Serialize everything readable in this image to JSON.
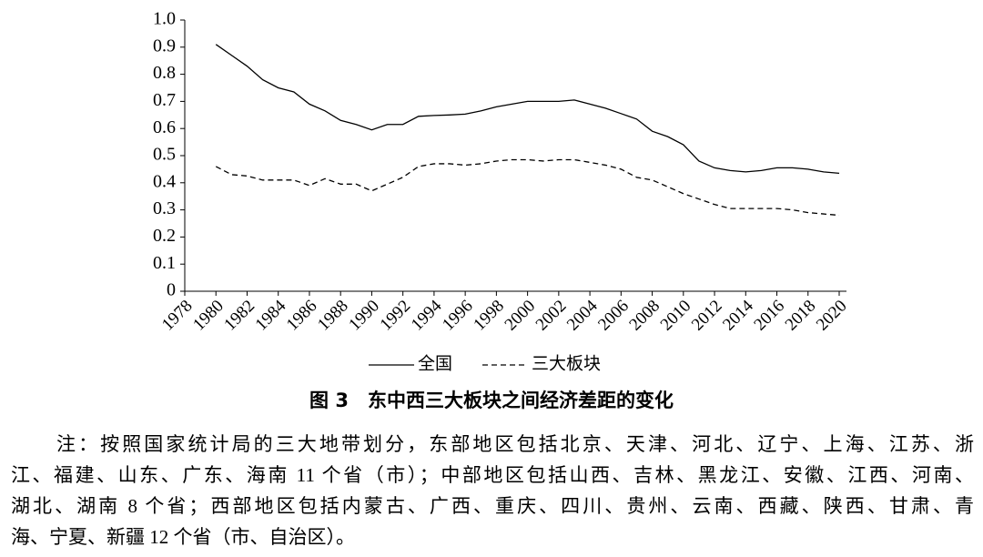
{
  "chart_data": {
    "type": "line",
    "x": [
      1980,
      1981,
      1982,
      1983,
      1984,
      1985,
      1986,
      1987,
      1988,
      1989,
      1990,
      1991,
      1992,
      1993,
      1994,
      1995,
      1996,
      1997,
      1998,
      1999,
      2000,
      2001,
      2002,
      2003,
      2004,
      2005,
      2006,
      2007,
      2008,
      2009,
      2010,
      2011,
      2012,
      2013,
      2014,
      2015,
      2016,
      2017,
      2018,
      2019,
      2020
    ],
    "series": [
      {
        "name": "全国",
        "color": "#000000",
        "dash": "solid",
        "values": [
          0.91,
          0.87,
          0.83,
          0.78,
          0.75,
          0.735,
          0.69,
          0.665,
          0.63,
          0.615,
          0.595,
          0.615,
          0.615,
          0.645,
          0.648,
          0.65,
          0.653,
          0.665,
          0.68,
          0.69,
          0.7,
          0.7,
          0.7,
          0.705,
          0.69,
          0.675,
          0.655,
          0.635,
          0.59,
          0.57,
          0.54,
          0.48,
          0.455,
          0.445,
          0.44,
          0.445,
          0.455,
          0.455,
          0.45,
          0.44,
          0.435
        ]
      },
      {
        "name": "三大板块",
        "color": "#000000",
        "dash": "dashed",
        "values": [
          0.46,
          0.43,
          0.425,
          0.41,
          0.41,
          0.41,
          0.39,
          0.415,
          0.395,
          0.395,
          0.37,
          0.395,
          0.42,
          0.46,
          0.47,
          0.47,
          0.465,
          0.47,
          0.48,
          0.485,
          0.485,
          0.48,
          0.485,
          0.485,
          0.475,
          0.465,
          0.45,
          0.42,
          0.41,
          0.385,
          0.36,
          0.34,
          0.32,
          0.305,
          0.305,
          0.305,
          0.305,
          0.3,
          0.29,
          0.285,
          0.28
        ]
      }
    ],
    "xlim": [
      1978,
      2020
    ],
    "xticks": [
      1978,
      1980,
      1982,
      1984,
      1986,
      1988,
      1990,
      1992,
      1994,
      1996,
      1998,
      2000,
      2002,
      2004,
      2006,
      2008,
      2010,
      2012,
      2014,
      2016,
      2018,
      2020
    ],
    "ylim": [
      0,
      1
    ],
    "yticks": [
      0,
      0.1,
      0.2,
      0.3,
      0.4,
      0.5,
      0.6,
      0.7,
      0.8,
      0.9,
      {
        "value": 1,
        "label": "1.0"
      }
    ],
    "legend": "bottom"
  },
  "figure_caption": "图 3　东中西三大板块之间经济差距的变化",
  "note": [
    "注：按照国家统计局的三大地带划分，东部地区包括北京、天津、河北、辽宁、上海、江苏、浙",
    "江、福建、山东、广东、海南 11 个省（市）；中部地区包括山西、吉林、黑龙江、安徽、江西、河南、",
    "湖北、湖南 8 个省；西部地区包括内蒙古、广西、重庆、四川、贵州、云南、西藏、陕西、甘肃、青",
    "海、宁夏、新疆 12 个省（市、自治区）。"
  ]
}
